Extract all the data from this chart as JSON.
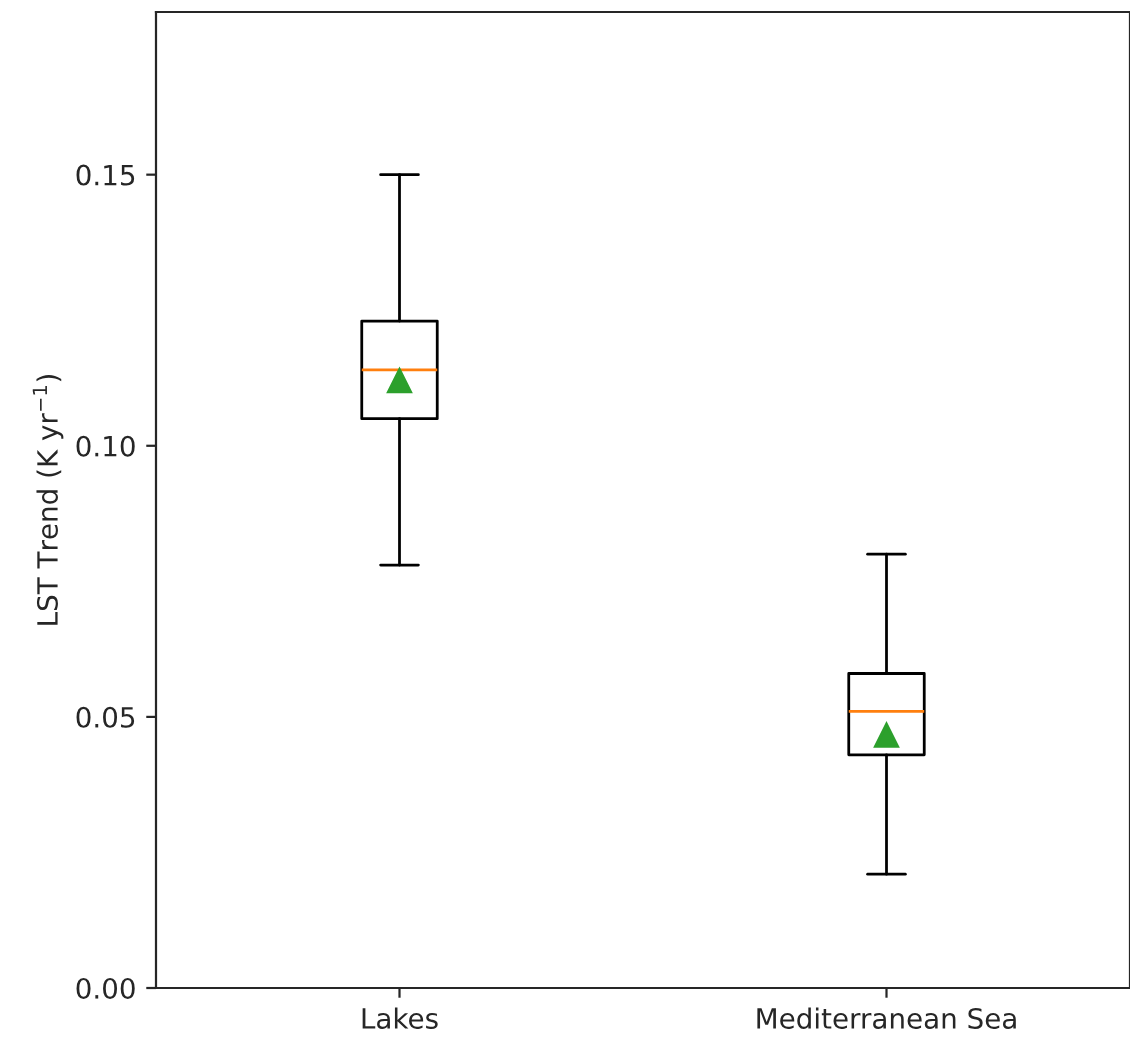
{
  "chart_data": {
    "type": "box",
    "ylabel": "LST Trend (K yr$^{−1}$)",
    "categories": [
      "Lakes",
      "Mediterranean Sea"
    ],
    "boxes": [
      {
        "low": 0.078,
        "q1": 0.105,
        "median": 0.114,
        "q3": 0.123,
        "high": 0.15,
        "mean": 0.112
      },
      {
        "low": 0.021,
        "q1": 0.043,
        "median": 0.051,
        "q3": 0.058,
        "high": 0.08,
        "mean": 0.0466
      }
    ],
    "ylim": [
      0,
      0.18
    ],
    "yticks": [
      {
        "value": 0,
        "label": "0.00"
      },
      {
        "value": 0.05,
        "label": "0.05"
      },
      {
        "value": 0.1,
        "label": "0.10"
      },
      {
        "value": 0.15,
        "label": "0.15"
      }
    ],
    "grid": false
  }
}
